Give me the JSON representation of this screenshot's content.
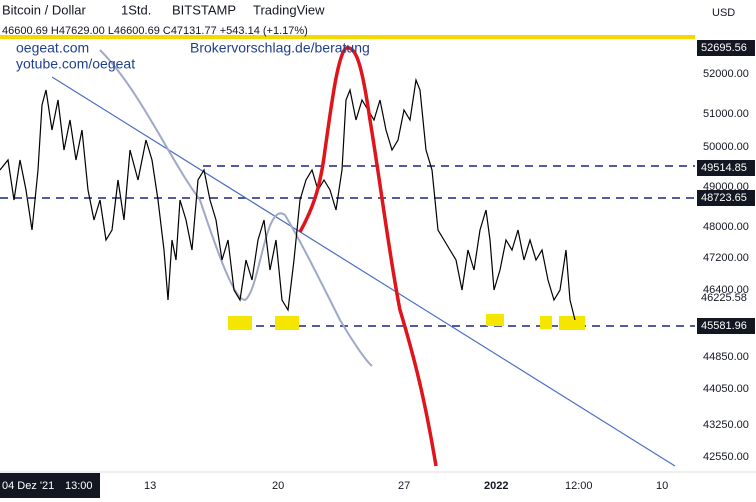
{
  "header": {
    "symbol": "Bitcoin / Dollar",
    "interval": "1Std.",
    "exchange": "BITSTAMP",
    "source": "TradingView",
    "ohlc": "46600.69 H47629.00 L46600.69 C47131.77 +543.14 (+1.17%)"
  },
  "watermarks": [
    "oegeat.com",
    "yotube.com/oegeat",
    "Brokervorschlag.de/beratung"
  ],
  "currency": "USD",
  "price_axis": [
    "52000.00",
    "51000.00",
    "50000.00",
    "49000.00",
    "48000.00",
    "47200.00",
    "46400.00",
    "44850.00",
    "44050.00",
    "43250.00",
    "42550.00"
  ],
  "price_markers": [
    "52695.56",
    "49514.85",
    "48723.65",
    "46225.58",
    "45581.96"
  ],
  "time_axis": [
    "04 Dez '21",
    "13:00",
    "13",
    "20",
    "27",
    "2022",
    "12:00",
    "10"
  ]
}
